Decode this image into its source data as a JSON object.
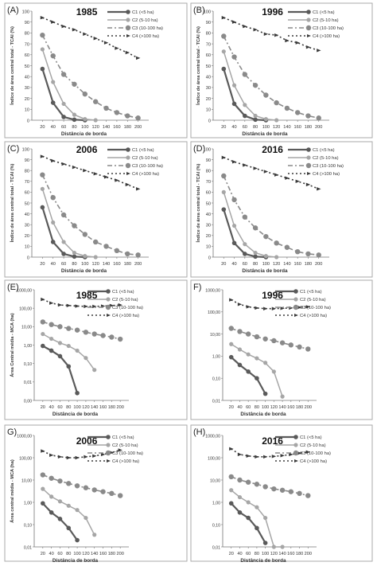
{
  "chart_data": [
    {
      "type": "line",
      "panel_label": "(A)",
      "title": "1985",
      "xlabel": "Distância de borda",
      "ylabel": "Índice de área central total - TCAI (%)",
      "scale": "linear",
      "xlim": [
        0,
        220
      ],
      "ylim": [
        0,
        100
      ],
      "xticks": [
        20,
        40,
        60,
        80,
        100,
        120,
        140,
        160,
        180,
        200
      ],
      "yticks": [
        0,
        10,
        20,
        30,
        40,
        50,
        60,
        70,
        80,
        90,
        100
      ],
      "series": [
        {
          "name": "C1  (<5 ha)",
          "x": [
            20,
            40,
            60,
            80,
            100
          ],
          "y": [
            47,
            16,
            3,
            0.5,
            0
          ]
        },
        {
          "name": "C2  (5-10 ha)",
          "x": [
            20,
            40,
            60,
            80,
            100,
            120
          ],
          "y": [
            65,
            35,
            15,
            5,
            1,
            0
          ]
        },
        {
          "name": "C3  (10-100 ha)",
          "x": [
            20,
            40,
            60,
            80,
            100,
            120,
            140,
            160,
            180,
            200
          ],
          "y": [
            78,
            59,
            42,
            33,
            24,
            17,
            11,
            7,
            4,
            2
          ]
        },
        {
          "name": "C4  (>100 ha)",
          "x": [
            20,
            40,
            60,
            80,
            100,
            120,
            140,
            160,
            180,
            200
          ],
          "y": [
            94,
            90,
            86,
            83,
            79,
            75,
            71,
            66,
            62,
            57
          ]
        }
      ]
    },
    {
      "type": "line",
      "panel_label": "(B)",
      "title": "1996",
      "xlabel": "Distância de borda",
      "ylabel": "Índice de área central total - TCAI (%)",
      "scale": "linear",
      "xlim": [
        0,
        220
      ],
      "ylim": [
        0,
        100
      ],
      "xticks": [
        20,
        40,
        60,
        80,
        100,
        120,
        140,
        160,
        180,
        200
      ],
      "yticks": [
        0,
        10,
        20,
        30,
        40,
        50,
        60,
        70,
        80,
        90,
        100
      ],
      "series": [
        {
          "name": "C1  (<5 ha)",
          "x": [
            20,
            40,
            60,
            80,
            100
          ],
          "y": [
            47,
            15,
            4,
            0.5,
            0
          ]
        },
        {
          "name": "C2  (5-10 ha)",
          "x": [
            20,
            40,
            60,
            80,
            100,
            120
          ],
          "y": [
            63,
            32,
            14,
            4,
            1,
            0
          ]
        },
        {
          "name": "C3  (10-100 ha)",
          "x": [
            20,
            40,
            60,
            80,
            100,
            120,
            140,
            160,
            180,
            200
          ],
          "y": [
            77,
            58,
            42,
            32,
            23,
            16,
            11,
            7,
            4,
            2
          ]
        },
        {
          "name": "C4  (>100 ha)",
          "x": [
            20,
            40,
            60,
            80,
            100,
            120,
            140,
            160,
            180,
            200
          ],
          "y": [
            94,
            90,
            86,
            83,
            79,
            78,
            73,
            71,
            67,
            64
          ]
        }
      ]
    },
    {
      "type": "line",
      "panel_label": "(C)",
      "title": "2006",
      "xlabel": "Distância de borda",
      "ylabel": "Índice de área central total - TCAI (%)",
      "scale": "linear",
      "xlim": [
        0,
        220
      ],
      "ylim": [
        0,
        100
      ],
      "xticks": [
        20,
        40,
        60,
        80,
        100,
        120,
        140,
        160,
        180,
        200
      ],
      "yticks": [
        0,
        10,
        20,
        30,
        40,
        50,
        60,
        70,
        80,
        90,
        100
      ],
      "series": [
        {
          "name": "C1  (<5 ha)",
          "x": [
            20,
            40,
            60,
            80,
            100
          ],
          "y": [
            46,
            14,
            3,
            0.5,
            0
          ]
        },
        {
          "name": "C2  (5-10 ha)",
          "x": [
            20,
            40,
            60,
            80,
            100,
            120
          ],
          "y": [
            63,
            32,
            14,
            4,
            1,
            0
          ]
        },
        {
          "name": "C3  (10-100 ha)",
          "x": [
            20,
            40,
            60,
            80,
            100,
            120,
            140,
            160,
            180,
            200
          ],
          "y": [
            76,
            55,
            39,
            29,
            21,
            14,
            10,
            6,
            3,
            2
          ]
        },
        {
          "name": "C4  (>100 ha)",
          "x": [
            20,
            40,
            60,
            80,
            100,
            120,
            140,
            160,
            180,
            200
          ],
          "y": [
            93,
            89,
            86,
            83,
            80,
            77,
            74,
            71,
            67,
            63
          ]
        }
      ]
    },
    {
      "type": "line",
      "panel_label": "(D)",
      "title": "2016",
      "xlabel": "Distância de borda",
      "ylabel": "Índice de área central total - TCAI (%)",
      "scale": "linear",
      "xlim": [
        0,
        220
      ],
      "ylim": [
        0,
        100
      ],
      "xticks": [
        20,
        40,
        60,
        80,
        100,
        120,
        140,
        160,
        180,
        200
      ],
      "yticks": [
        0,
        10,
        20,
        30,
        40,
        50,
        60,
        70,
        80,
        90,
        100
      ],
      "series": [
        {
          "name": "C1  (<5 ha)",
          "x": [
            20,
            40,
            60,
            80,
            100
          ],
          "y": [
            44,
            13,
            3,
            0.5,
            0
          ]
        },
        {
          "name": "C2  (5-10 ha)",
          "x": [
            20,
            40,
            60,
            80,
            100,
            120
          ],
          "y": [
            60,
            29,
            12,
            4,
            1,
            0
          ]
        },
        {
          "name": "C3  (10-100 ha)",
          "x": [
            20,
            40,
            60,
            80,
            100,
            120,
            140,
            160,
            180,
            200
          ],
          "y": [
            75,
            53,
            37,
            27,
            19,
            13,
            9,
            5,
            3,
            2
          ]
        },
        {
          "name": "C4  (>100 ha)",
          "x": [
            20,
            40,
            60,
            80,
            100,
            120,
            140,
            160,
            180,
            200
          ],
          "y": [
            92,
            88,
            85,
            82,
            79,
            76,
            73,
            70,
            67,
            63
          ]
        }
      ]
    },
    {
      "type": "line",
      "panel_label": "(E)",
      "title": "1985",
      "xlabel": "Distância de borda",
      "ylabel": "Área Central média - MCA (ha)",
      "scale": "log",
      "xlim": [
        0,
        220
      ],
      "ylim": [
        0.001,
        1000
      ],
      "xticks": [
        20,
        40,
        60,
        80,
        100,
        120,
        140,
        160,
        180,
        200
      ],
      "ytick_values": [
        0.001,
        0.01,
        0.1,
        1,
        10,
        100,
        1000
      ],
      "ytick_labels": [
        "0,00",
        "0,01",
        "0,10",
        "1,00",
        "10,00",
        "100,00",
        "1000,00"
      ],
      "series": [
        {
          "name": "C1  (<5 ha)",
          "x": [
            20,
            40,
            60,
            80,
            100
          ],
          "y": [
            0.9,
            0.5,
            0.25,
            0.07,
            0.0025
          ]
        },
        {
          "name": "C2  (5-10 ha)",
          "x": [
            20,
            40,
            60,
            80,
            100,
            120,
            140
          ],
          "y": [
            4,
            2.2,
            1.3,
            0.9,
            0.5,
            0.2,
            0.045
          ]
        },
        {
          "name": "C3  (10-100 ha)",
          "x": [
            20,
            40,
            60,
            80,
            100,
            120,
            140,
            160,
            180,
            200
          ],
          "y": [
            18,
            13,
            10,
            8,
            6.5,
            5,
            4,
            3.3,
            2.7,
            2.1
          ]
        },
        {
          "name": "C4  (>100 ha)",
          "x": [
            20,
            40,
            60,
            80,
            100,
            120,
            140,
            160,
            180,
            200
          ],
          "y": [
            300,
            190,
            150,
            140,
            130,
            125,
            125,
            130,
            140,
            150
          ]
        }
      ]
    },
    {
      "type": "line",
      "panel_label": "F)",
      "title": "1996",
      "xlabel": "Distância de borda",
      "ylabel": "",
      "scale": "log",
      "xlim": [
        0,
        220
      ],
      "ylim": [
        0.01,
        1000
      ],
      "xticks": [
        20,
        40,
        60,
        80,
        100,
        120,
        140,
        160,
        180,
        200
      ],
      "ytick_values": [
        0.01,
        0.1,
        1,
        10,
        100,
        1000
      ],
      "ytick_labels": [
        "0,01",
        "0,10",
        "1,00",
        "10,00",
        "100,00",
        "1000,00"
      ],
      "series": [
        {
          "name": "C1  (<5 ha)",
          "x": [
            20,
            40,
            60,
            80,
            100
          ],
          "y": [
            0.9,
            0.4,
            0.2,
            0.1,
            0.02
          ]
        },
        {
          "name": "C2  (5-10 ha)",
          "x": [
            20,
            40,
            60,
            80,
            100,
            120,
            140
          ],
          "y": [
            3.5,
            2,
            1.2,
            0.8,
            0.5,
            0.2,
            0.015
          ]
        },
        {
          "name": "C3  (10-100 ha)",
          "x": [
            20,
            40,
            60,
            80,
            100,
            120,
            140,
            160,
            180,
            200
          ],
          "y": [
            18,
            13,
            10,
            7.5,
            6,
            5,
            4,
            3.2,
            2.6,
            2.1
          ]
        },
        {
          "name": "C4  (>100 ha)",
          "x": [
            20,
            40,
            60,
            80,
            100,
            120,
            140,
            160,
            180,
            200
          ],
          "y": [
            350,
            220,
            170,
            150,
            140,
            140,
            145,
            150,
            160,
            170
          ]
        }
      ]
    },
    {
      "type": "line",
      "panel_label": "G)",
      "title": "2006",
      "xlabel": "Distância de borda",
      "ylabel": "Área central média - MCA (ha)",
      "scale": "log",
      "xlim": [
        0,
        220
      ],
      "ylim": [
        0.01,
        1000
      ],
      "xticks": [
        20,
        40,
        60,
        80,
        100,
        120,
        140,
        160,
        180,
        200
      ],
      "ytick_values": [
        0.01,
        0.1,
        1,
        10,
        100,
        1000
      ],
      "ytick_labels": [
        "0,01",
        "0,10",
        "1,00",
        "10,00",
        "100,00",
        "1000,00"
      ],
      "series": [
        {
          "name": "C1  (<5 ha)",
          "x": [
            20,
            40,
            60,
            80,
            100
          ],
          "y": [
            0.9,
            0.35,
            0.18,
            0.07,
            0.02
          ]
        },
        {
          "name": "C2  (5-10 ha)",
          "x": [
            20,
            40,
            60,
            80,
            100,
            120,
            140
          ],
          "y": [
            4,
            1.8,
            1.1,
            0.7,
            0.45,
            0.2,
            0.035
          ]
        },
        {
          "name": "C3  (10-100 ha)",
          "x": [
            20,
            40,
            60,
            80,
            100,
            120,
            140,
            160,
            180,
            200
          ],
          "y": [
            17,
            12,
            9,
            7,
            5.5,
            4.5,
            3.6,
            3,
            2.5,
            2
          ]
        },
        {
          "name": "C4  (>100 ha)",
          "x": [
            20,
            40,
            60,
            80,
            100,
            120,
            140,
            160,
            180,
            200
          ],
          "y": [
            200,
            130,
            110,
            100,
            100,
            110,
            120,
            140,
            170,
            220
          ]
        }
      ]
    },
    {
      "type": "line",
      "panel_label": "(H)",
      "title": "2016",
      "xlabel": "Distância de borda",
      "ylabel": "",
      "scale": "log",
      "xlim": [
        0,
        220
      ],
      "ylim": [
        0.01,
        1000
      ],
      "xticks": [
        20,
        40,
        60,
        80,
        100,
        120,
        140,
        160,
        180,
        200
      ],
      "ytick_values": [
        0.01,
        0.1,
        1,
        10,
        100,
        1000
      ],
      "ytick_labels": [
        "0,01",
        "0,10",
        "1,00",
        "10,00",
        "100,00",
        "1000,00"
      ],
      "series": [
        {
          "name": "C1  (<5 ha)",
          "x": [
            20,
            40,
            60,
            80,
            100
          ],
          "y": [
            0.9,
            0.35,
            0.2,
            0.07,
            0.015
          ]
        },
        {
          "name": "C2  (5-10 ha)",
          "x": [
            20,
            40,
            60,
            80,
            100,
            120,
            140
          ],
          "y": [
            3.5,
            1.7,
            1.0,
            0.6,
            0.2,
            0.01,
            0.005
          ]
        },
        {
          "name": "C3  (10-100 ha)",
          "x": [
            20,
            40,
            60,
            80,
            100,
            120,
            140,
            160,
            180,
            200
          ],
          "y": [
            14,
            10,
            8,
            6.5,
            5,
            4,
            3.5,
            3,
            2.5,
            2
          ]
        },
        {
          "name": "C4  (>100 ha)",
          "x": [
            20,
            40,
            60,
            80,
            100,
            120,
            140,
            160,
            180,
            200
          ],
          "y": [
            250,
            140,
            120,
            110,
            110,
            115,
            125,
            140,
            160,
            180
          ]
        }
      ]
    }
  ],
  "series_colors": [
    "#5a5a5a",
    "#a6a6a6",
    "#8a8a8a",
    "#3a3a3a"
  ],
  "frame_color": "#aaaaaa"
}
